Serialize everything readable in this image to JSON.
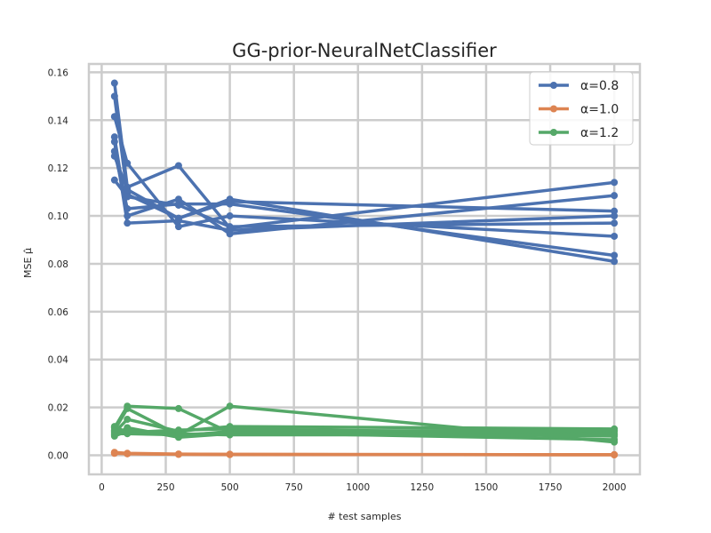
{
  "chart_data": {
    "type": "line",
    "title": "GG-prior-NeuralNetClassifier",
    "xlabel": "# test samples",
    "ylabel": "MSE μ̂",
    "xlim": [
      -50,
      2100
    ],
    "ylim": [
      -0.008,
      0.1635
    ],
    "xticks": [
      0,
      250,
      500,
      750,
      1000,
      1250,
      1500,
      1750,
      2000
    ],
    "xtick_labels": [
      "0",
      "250",
      "500",
      "750",
      "1000",
      "1250",
      "1500",
      "1750",
      "2000"
    ],
    "yticks": [
      0.0,
      0.02,
      0.04,
      0.06,
      0.08,
      0.1,
      0.12,
      0.14,
      0.16
    ],
    "ytick_labels": [
      "0.00",
      "0.02",
      "0.04",
      "0.06",
      "0.08",
      "0.10",
      "0.12",
      "0.14",
      "0.16"
    ],
    "grid": true,
    "legend_position": "top-right",
    "x": [
      50,
      100,
      300,
      500,
      2000
    ],
    "groups": [
      {
        "label": "α=1.2",
        "color": "#55a868",
        "runs": [
          [
            0.0115,
            0.0205,
            0.0195,
            0.0095,
            0.0065
          ],
          [
            0.0105,
            0.0195,
            0.0085,
            0.0205,
            0.0055
          ],
          [
            0.0095,
            0.015,
            0.01,
            0.012,
            0.011
          ],
          [
            0.0085,
            0.0115,
            0.0075,
            0.009,
            0.01
          ],
          [
            0.008,
            0.01,
            0.009,
            0.0085,
            0.0085
          ],
          [
            0.012,
            0.0095,
            0.0105,
            0.011,
            0.009
          ],
          [
            0.01,
            0.0105,
            0.008,
            0.01,
            0.0105
          ],
          [
            0.009,
            0.009,
            0.0085,
            0.0095,
            0.008
          ]
        ]
      },
      {
        "label": "α=1.0",
        "color": "#dd8452",
        "runs": [
          [
            0.0012,
            0.0008,
            0.0005,
            0.0004,
            0.0002
          ],
          [
            0.0008,
            0.0006,
            0.0004,
            0.0003,
            0.0002
          ],
          [
            0.001,
            0.0007,
            0.0004,
            0.0003,
            0.0002
          ]
        ]
      },
      {
        "label": "α=0.8",
        "color": "#4c72b0",
        "runs": [
          [
            0.1555,
            0.112,
            0.121,
            0.095,
            0.114
          ],
          [
            0.15,
            0.109,
            0.099,
            0.107,
            0.081
          ],
          [
            0.1415,
            0.122,
            0.0955,
            0.1,
            0.0915
          ],
          [
            0.133,
            0.1,
            0.107,
            0.0925,
            0.1085
          ],
          [
            0.131,
            0.097,
            0.098,
            0.094,
            0.1
          ],
          [
            0.127,
            0.103,
            0.105,
            0.105,
            0.0835
          ],
          [
            0.125,
            0.111,
            0.099,
            0.106,
            0.102
          ],
          [
            0.115,
            0.108,
            0.1045,
            0.0955,
            0.097
          ]
        ]
      }
    ],
    "legend": [
      {
        "label": "α=0.8",
        "color": "#4c72b0"
      },
      {
        "label": "α=1.0",
        "color": "#dd8452"
      },
      {
        "label": "α=1.2",
        "color": "#55a868"
      }
    ]
  }
}
